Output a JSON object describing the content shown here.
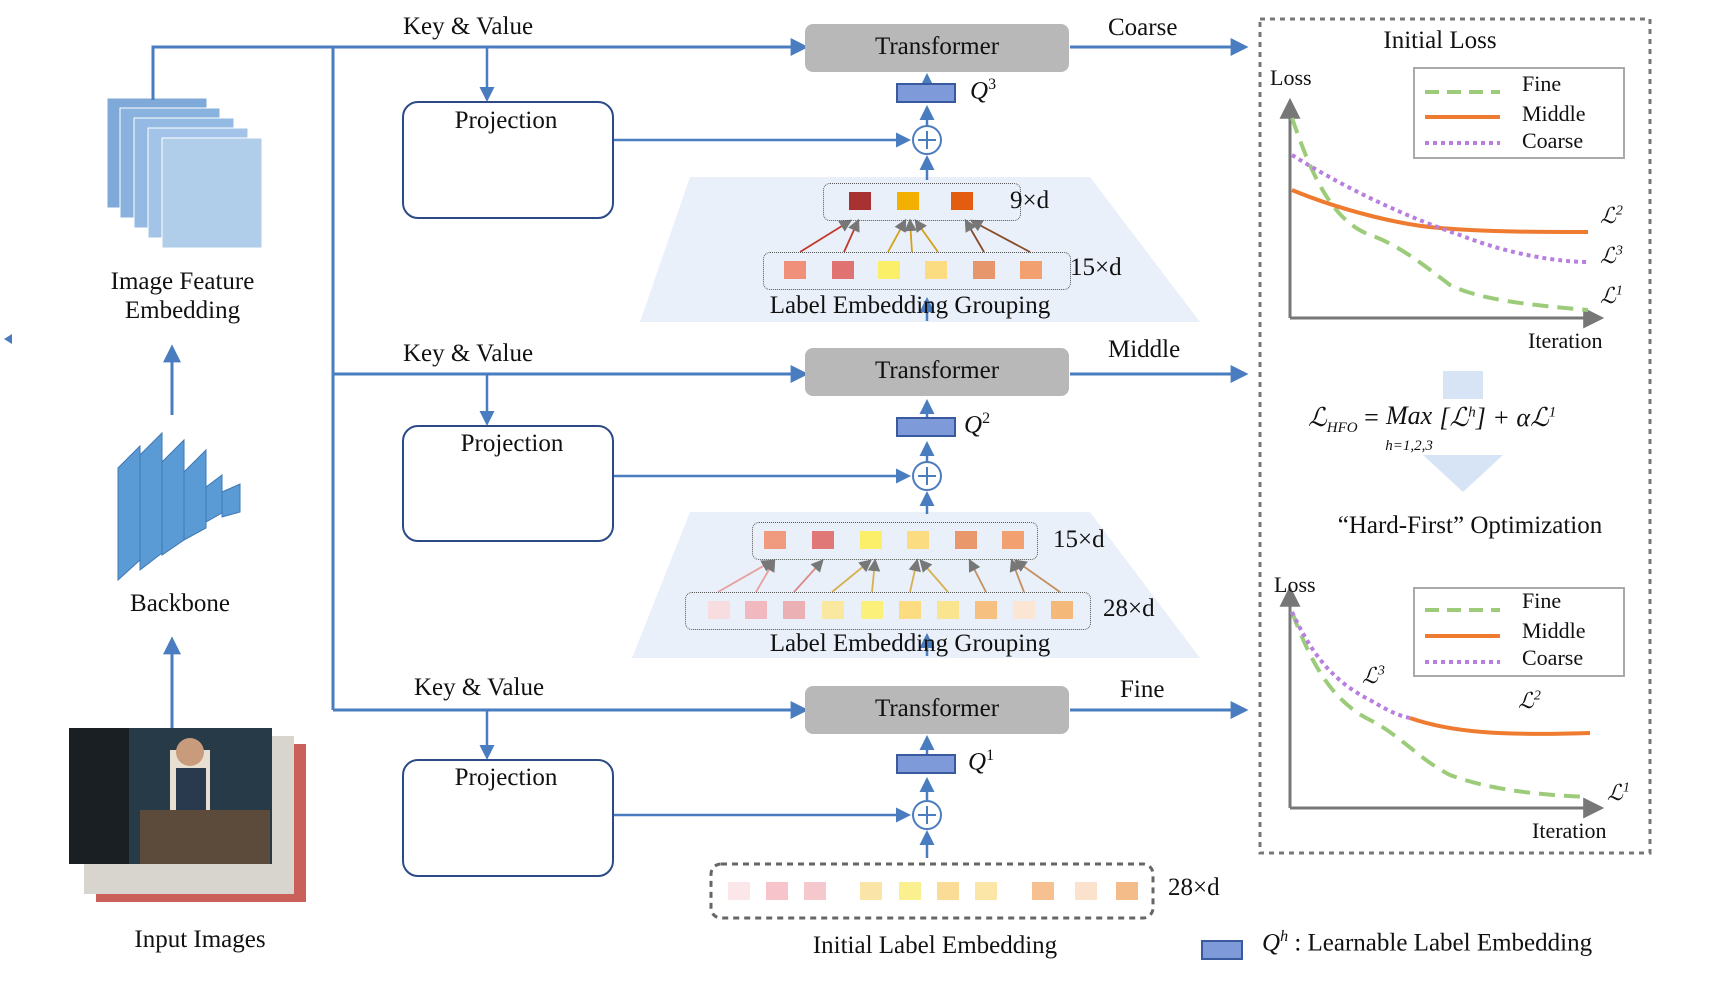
{
  "left": {
    "image_feature_embedding": [
      "Image Feature",
      "Embedding"
    ],
    "backbone": "Backbone",
    "input_images": "Input Images"
  },
  "stages": [
    {
      "kv": "Key & Value",
      "transformer": "Transformer",
      "out": "Coarse",
      "projection": "Projection",
      "q": "Q",
      "q_sup": "3"
    },
    {
      "kv": "Key & Value",
      "transformer": "Transformer",
      "out": "Middle",
      "projection": "Projection",
      "q": "Q",
      "q_sup": "2"
    },
    {
      "kv": "Key & Value",
      "transformer": "Transformer",
      "out": "Fine",
      "projection": "Projection",
      "q": "Q",
      "q_sup": "1"
    }
  ],
  "grouping": [
    {
      "title": "Label Embedding Grouping",
      "top_dim": "9×d",
      "bottom_dim": "15×d"
    },
    {
      "title": "Label Embedding Grouping",
      "top_dim": "15×d",
      "bottom_dim": "28×d"
    }
  ],
  "initial_embedding": {
    "title": "Initial Label Embedding",
    "dim": "28×d"
  },
  "legend_note": {
    "q": "Q",
    "sup": "h",
    "text": ": Learnable Label Embedding"
  },
  "right_panel": {
    "title": "Initial Loss",
    "top_plot": {
      "ylabel": "Loss",
      "xlabel": "Iteration",
      "legend": [
        "Fine",
        "Middle",
        "Coarse"
      ],
      "curve_labels": [
        "ℒ",
        "ℒ",
        "ℒ"
      ],
      "curve_sups": [
        "2",
        "3",
        "1"
      ]
    },
    "formula": {
      "lhs": "ℒ",
      "lhs_sub": "HFO",
      "op": "Max",
      "op_sub": "h=1,2,3",
      "rhs": "[ℒ",
      "rhs_sup": "h",
      "rhs2": "] + αℒ",
      "rhs2_sup": "1"
    },
    "optimization": "“Hard-First” Optimization",
    "bottom_plot": {
      "ylabel": "Loss",
      "xlabel": "Iteration",
      "legend": [
        "Fine",
        "Middle",
        "Coarse"
      ],
      "curve_labels": [
        "ℒ",
        "ℒ",
        "ℒ"
      ],
      "curve_sups": [
        "3",
        "2",
        "1"
      ]
    }
  },
  "colors": {
    "arrow": "#4a7cc0",
    "fine": "#9ccc7a",
    "middle": "#ee7b30",
    "coarse": "#b77fe0"
  }
}
